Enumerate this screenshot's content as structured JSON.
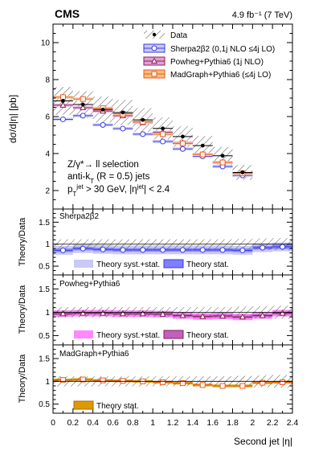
{
  "header": {
    "experiment": "CMS",
    "lumi": "4.9 fb⁻¹ (7 TeV)"
  },
  "labels": {
    "main_ylabel": "dσ/d|η| [pb]",
    "ratio_ylabel": "Theory/Data",
    "xlabel": "Second jet |η|",
    "selection": [
      "Z/γ*→ ll selection",
      "anti-kT (R = 0.5) jets",
      "pT jet > 30 GeV, |ηjet| < 2.4"
    ]
  },
  "legend": {
    "data": "Data",
    "sherpa": "Sherpa2β2 (0,1j NLO ≤4j LO)",
    "powheg": "Powheg+Pythia6 (1j NLO)",
    "madgraph": "MadGraph+Pythia6 (≤4j LO)"
  },
  "ratio_panels": [
    {
      "title": "Sherpa2β2",
      "legend": [
        "Theory syst.+stat.",
        "Theory stat."
      ]
    },
    {
      "title": "Powheg+Pythia6",
      "legend": [
        "Theory syst.+stat.",
        "Theory stat."
      ]
    },
    {
      "title": "MadGraph+Pythia6",
      "legend": [
        "Theory stat."
      ]
    }
  ],
  "colors": {
    "sherpa": "#3a3ae6",
    "sherpa_band": "#c9c9f5",
    "sherpa_stat": "#8080ff",
    "powheg": "#8b2252",
    "powheg_band": "#ff88ff",
    "powheg_stat": "#c060c0",
    "madgraph": "#ee5a1f",
    "madgraph_stat": "#dd9a00",
    "data": "#000000",
    "hatch": "#555555"
  },
  "chart_data": {
    "type": "line",
    "x_bin_edges": [
      0,
      0.2,
      0.4,
      0.6,
      0.8,
      1.0,
      1.2,
      1.4,
      1.6,
      1.8,
      2.0,
      2.2,
      2.4
    ],
    "x": [
      0.1,
      0.3,
      0.5,
      0.7,
      0.9,
      1.1,
      1.3,
      1.5,
      1.7,
      1.9,
      2.1,
      2.3
    ],
    "xlim": [
      0,
      2.4
    ],
    "x_ticks": [
      0,
      0.2,
      0.4,
      0.6,
      0.8,
      1,
      1.2,
      1.4,
      1.6,
      1.8,
      2,
      2.2,
      2.4
    ],
    "main": {
      "ylim": [
        1.0,
        11.0
      ],
      "y_ticks": [
        2,
        4,
        6,
        8,
        10
      ],
      "series": [
        {
          "name": "Data",
          "values": [
            6.85,
            6.65,
            6.38,
            6.22,
            5.82,
            5.36,
            4.92,
            4.43,
            3.88,
            2.98,
            0,
            0
          ],
          "sys": [
            0.75,
            0.72,
            0.7,
            0.68,
            0.64,
            0.6,
            0.56,
            0.52,
            0.48,
            0.4,
            0,
            0
          ]
        },
        {
          "name": "Sherpa2β2 (0,1j NLO ≤4j LO)",
          "values": [
            5.85,
            6.05,
            5.55,
            5.35,
            5.05,
            4.65,
            4.25,
            3.85,
            3.3,
            2.82,
            0,
            0
          ]
        },
        {
          "name": "Powheg+Pythia6 (1j NLO)",
          "values": [
            6.62,
            6.48,
            6.3,
            6.05,
            5.68,
            5.15,
            4.58,
            3.95,
            3.52,
            2.92,
            0,
            0
          ]
        },
        {
          "name": "MadGraph+Pythia6 (≤4j LO)",
          "values": [
            7.05,
            6.95,
            6.45,
            6.15,
            5.72,
            5.05,
            4.55,
            3.95,
            3.52,
            2.93,
            0,
            0
          ]
        }
      ]
    },
    "ratio": {
      "ylim": [
        0.3,
        1.8
      ],
      "y_ticks": [
        0.5,
        1,
        1.5
      ],
      "data_band": [
        0.11,
        0.11,
        0.11,
        0.11,
        0.11,
        0.11,
        0.11,
        0.11,
        0.11,
        0.12,
        0.13,
        0.14
      ],
      "panels": [
        {
          "name": "Sherpa2β2",
          "values": [
            0.86,
            0.9,
            0.88,
            0.87,
            0.87,
            0.87,
            0.87,
            0.87,
            0.87,
            0.86,
            0.92,
            0.94
          ],
          "syst": [
            0.1,
            0.1,
            0.1,
            0.1,
            0.1,
            0.1,
            0.1,
            0.1,
            0.1,
            0.1,
            0.1,
            0.1
          ],
          "stat": [
            0.04,
            0.04,
            0.04,
            0.04,
            0.04,
            0.04,
            0.04,
            0.04,
            0.04,
            0.04,
            0.04,
            0.05
          ]
        },
        {
          "name": "Powheg+Pythia6",
          "values": [
            0.97,
            0.98,
            0.98,
            0.97,
            0.97,
            0.96,
            0.93,
            0.91,
            0.92,
            0.9,
            0.93,
            0.98
          ],
          "syst": [
            0.07,
            0.07,
            0.07,
            0.07,
            0.07,
            0.07,
            0.07,
            0.07,
            0.07,
            0.07,
            0.07,
            0.07
          ],
          "stat": [
            0.03,
            0.03,
            0.03,
            0.03,
            0.03,
            0.03,
            0.03,
            0.03,
            0.03,
            0.03,
            0.03,
            0.03
          ]
        },
        {
          "name": "MadGraph+Pythia6",
          "values": [
            1.03,
            1.04,
            1.02,
            1.01,
            1.0,
            0.98,
            0.96,
            0.92,
            0.9,
            0.9,
            0.97,
            0.98
          ],
          "stat": [
            0.03,
            0.03,
            0.03,
            0.03,
            0.03,
            0.03,
            0.03,
            0.03,
            0.03,
            0.03,
            0.03,
            0.03
          ]
        }
      ]
    }
  }
}
